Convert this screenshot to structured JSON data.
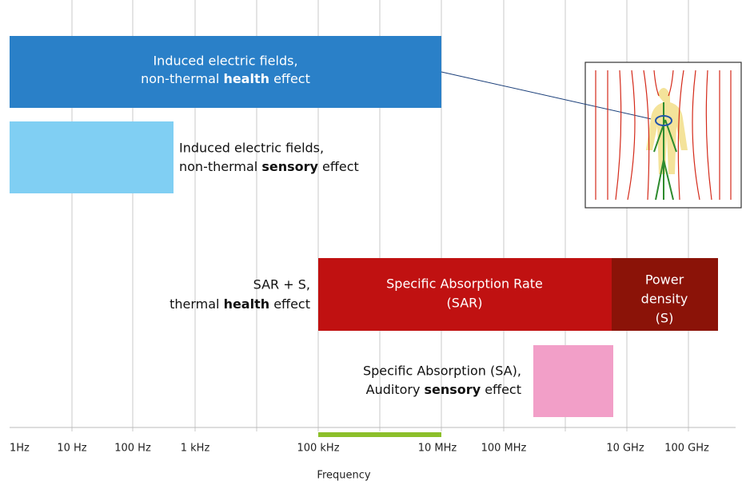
{
  "bars": [
    {
      "text": [
        "Induced electric fields,",
        "non-thermal ",
        "health",
        " effect"
      ]
    },
    {
      "text": [
        "Induced electric fields,",
        "non-thermal ",
        "sensory",
        " effect"
      ]
    },
    {
      "text": [
        "SAR + S,",
        "thermal ",
        "health",
        " effect"
      ]
    },
    {
      "lines": [
        "Specific Absorption Rate",
        "(SAR)"
      ]
    },
    {
      "lines": [
        "Power",
        "density",
        "(S)"
      ]
    },
    {
      "text": [
        "Specific Absorption (SA),",
        "Auditory ",
        "sensory",
        " effect"
      ]
    }
  ],
  "axis": {
    "ticks": [
      "1Hz",
      "10 Hz",
      "100 Hz",
      "1 kHz",
      "100 kHz",
      "10 MHz",
      "100 MHz",
      "10 GHz",
      "100 GHz"
    ],
    "title": "Frequency"
  }
}
